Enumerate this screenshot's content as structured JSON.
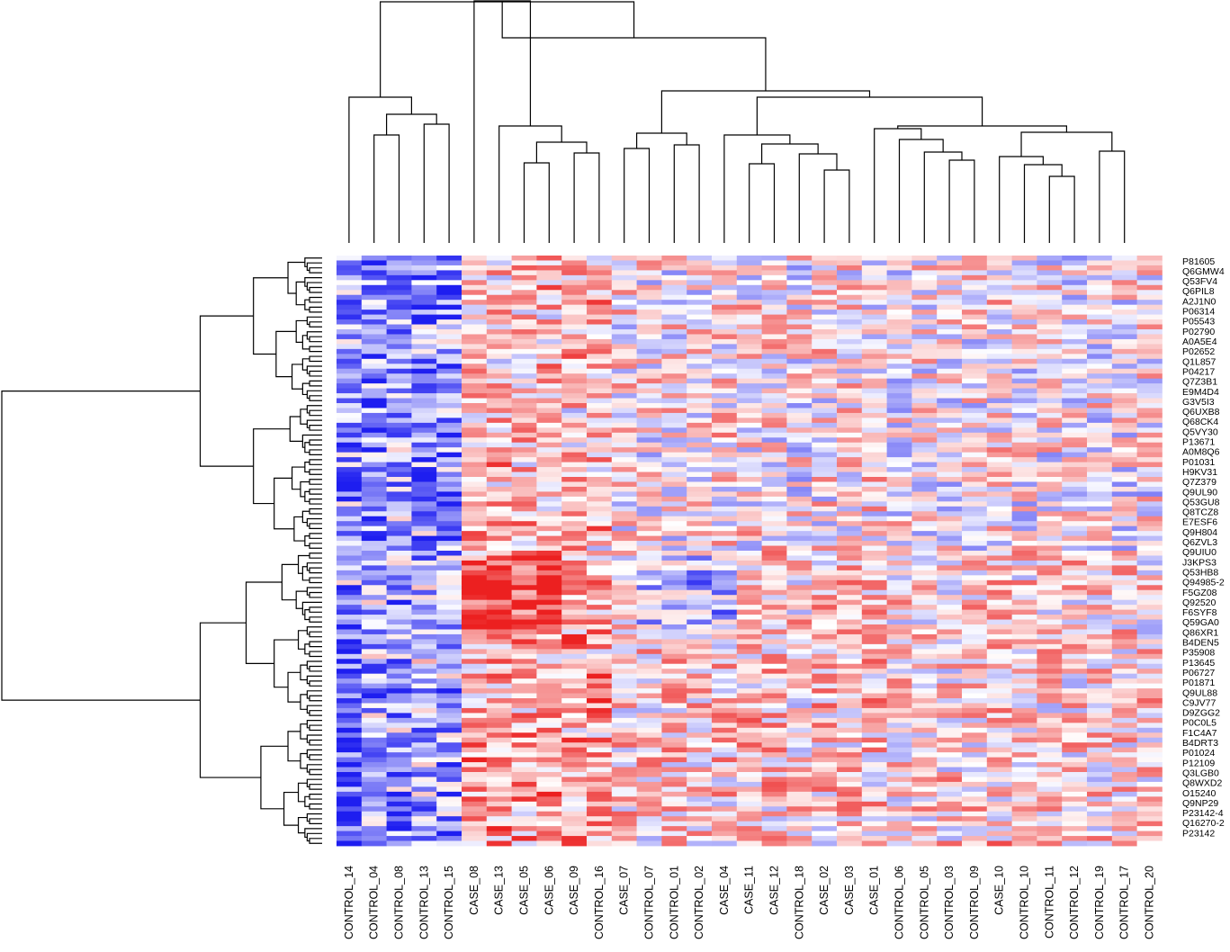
{
  "chart_data": {
    "type": "heatmap",
    "title": "",
    "xlabel": "",
    "ylabel": "",
    "color_scale": {
      "low": "#1e1ef0",
      "mid": "#ffffff",
      "high": "#ec2020"
    },
    "column_labels": [
      "CONTROL_14",
      "CONTROL_04",
      "CONTROL_08",
      "CONTROL_13",
      "CONTROL_15",
      "CASE_08",
      "CASE_13",
      "CASE_05",
      "CASE_06",
      "CASE_09",
      "CONTROL_16",
      "CASE_07",
      "CONTROL_07",
      "CONTROL_01",
      "CONTROL_02",
      "CASE_04",
      "CASE_11",
      "CASE_12",
      "CONTROL_18",
      "CASE_02",
      "CASE_03",
      "CASE_01",
      "CONTROL_06",
      "CONTROL_05",
      "CONTROL_03",
      "CONTROL_09",
      "CASE_10",
      "CONTROL_10",
      "CONTROL_11",
      "CONTROL_12",
      "CONTROL_19",
      "CONTROL_17",
      "CONTROL_20"
    ],
    "row_labels": [
      "P81605",
      "Q6GMW4",
      "Q53FV4",
      "Q6PIL8",
      "A2J1N0",
      "P06314",
      "P05543",
      "P02790",
      "A0A5E4",
      "P02652",
      "Q1L857",
      "P04217",
      "Q7Z3B1",
      "E9M4D4",
      "G3V5I3",
      "Q6UXB8",
      "Q68CK4",
      "Q5VY30",
      "P13671",
      "A0M8Q6",
      "P01031",
      "H9KV31",
      "Q7Z379",
      "Q9UL90",
      "Q53GU8",
      "Q8TCZ8",
      "E7ESF6",
      "Q9H804",
      "Q6ZVL3",
      "Q9UIU0",
      "J3KPS3",
      "Q53HB8",
      "Q94985-2",
      "F5GZ08",
      "Q92520",
      "F6SYF8",
      "Q59GA0",
      "Q86XR1",
      "B4DEN5",
      "P35908",
      "P13645",
      "P06727",
      "P01871",
      "Q9UL88",
      "C9JV77",
      "D9ZGG2",
      "P0C0L5",
      "F1C4A7",
      "B4DRT3",
      "P01024",
      "P12109",
      "Q3LGB0",
      "Q8WXD2",
      "O15240",
      "Q9NP29",
      "P23142-4",
      "Q16270-2",
      "P23142"
    ],
    "column_groups": [
      {
        "group": "CONTROL",
        "columns": [
          "CONTROL_14",
          "CONTROL_04",
          "CONTROL_08",
          "CONTROL_13",
          "CONTROL_15",
          "CONTROL_16",
          "CONTROL_07",
          "CONTROL_01",
          "CONTROL_02",
          "CONTROL_18",
          "CONTROL_06",
          "CONTROL_05",
          "CONTROL_03",
          "CONTROL_09",
          "CONTROL_10",
          "CONTROL_11",
          "CONTROL_12",
          "CONTROL_19",
          "CONTROL_17",
          "CONTROL_20"
        ]
      },
      {
        "group": "CASE",
        "columns": [
          "CASE_08",
          "CASE_13",
          "CASE_05",
          "CASE_06",
          "CASE_09",
          "CASE_07",
          "CASE_04",
          "CASE_11",
          "CASE_12",
          "CASE_02",
          "CASE_03",
          "CASE_01",
          "CASE_10"
        ]
      }
    ],
    "column_dendrogram": true,
    "row_dendrogram": true,
    "legend": "none"
  }
}
